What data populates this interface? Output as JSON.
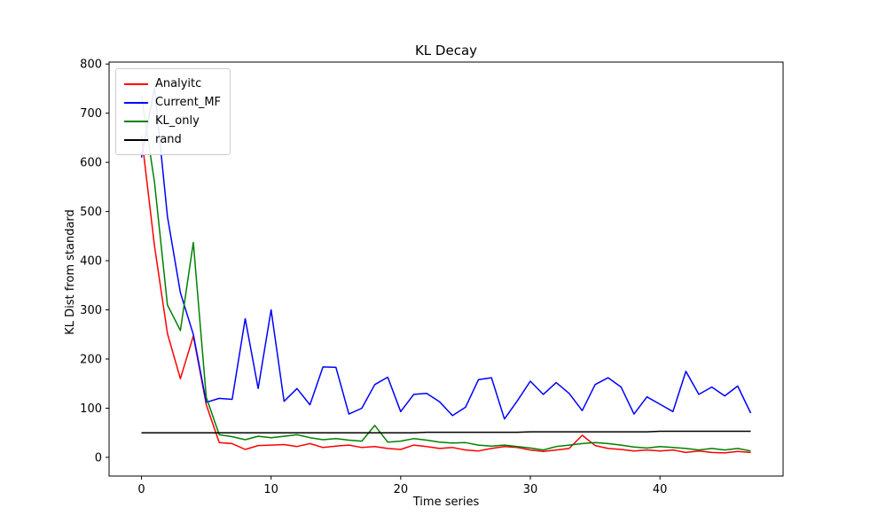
{
  "chart_data": {
    "type": "line",
    "title": "KL Decay",
    "xlabel": "Time series",
    "ylabel": "KL Dist from standard",
    "xlim": [
      -2.5,
      49.5
    ],
    "ylim": [
      -38,
      804
    ],
    "xticks": [
      0,
      10,
      20,
      30,
      40
    ],
    "yticks": [
      0,
      100,
      200,
      300,
      400,
      500,
      600,
      700,
      800
    ],
    "grid": false,
    "legend_position": "upper left",
    "x": [
      0,
      1,
      2,
      3,
      4,
      5,
      6,
      7,
      8,
      9,
      10,
      11,
      12,
      13,
      14,
      15,
      16,
      17,
      18,
      19,
      20,
      21,
      22,
      23,
      24,
      25,
      26,
      27,
      28,
      29,
      30,
      31,
      32,
      33,
      34,
      35,
      36,
      37,
      38,
      39,
      40,
      41,
      42,
      43,
      44,
      45,
      46,
      47
    ],
    "series": [
      {
        "name": "Analyitc",
        "color": "#ff0000",
        "values": [
          655,
          430,
          252,
          160,
          247,
          107,
          30,
          28,
          16,
          24,
          25,
          26,
          22,
          28,
          20,
          23,
          25,
          20,
          22,
          18,
          16,
          25,
          22,
          18,
          20,
          15,
          13,
          18,
          22,
          20,
          15,
          12,
          15,
          18,
          45,
          24,
          18,
          16,
          13,
          15,
          13,
          15,
          10,
          13,
          10,
          9,
          12,
          10
        ]
      },
      {
        "name": "Current_MF",
        "color": "#0000ff",
        "values": [
          610,
          752,
          490,
          335,
          250,
          112,
          120,
          118,
          282,
          140,
          300,
          114,
          140,
          107,
          184,
          183,
          88,
          100,
          148,
          163,
          93,
          128,
          130,
          113,
          85,
          102,
          158,
          162,
          78,
          115,
          155,
          128,
          152,
          130,
          95,
          148,
          162,
          143,
          88,
          123,
          108,
          93,
          175,
          128,
          143,
          125,
          145,
          90
        ]
      },
      {
        "name": "KL_only",
        "color": "#008000",
        "values": [
          735,
          560,
          310,
          258,
          437,
          122,
          46,
          42,
          36,
          43,
          40,
          43,
          46,
          40,
          36,
          38,
          35,
          33,
          65,
          31,
          33,
          38,
          35,
          31,
          29,
          30,
          25,
          23,
          25,
          22,
          19,
          15,
          22,
          25,
          28,
          30,
          28,
          25,
          21,
          19,
          22,
          20,
          18,
          15,
          18,
          15,
          18,
          13
        ]
      },
      {
        "name": "rand",
        "color": "#000000",
        "values": [
          50,
          50,
          50,
          50,
          50,
          50,
          50,
          50,
          50,
          50,
          50,
          50,
          50,
          50,
          50,
          50,
          50,
          50,
          50,
          50,
          50,
          50,
          51,
          51,
          51,
          51,
          51,
          51,
          51,
          51,
          52,
          52,
          52,
          52,
          52,
          52,
          52,
          52,
          52,
          52,
          53,
          53,
          53,
          53,
          53,
          53,
          53,
          53
        ]
      }
    ]
  }
}
